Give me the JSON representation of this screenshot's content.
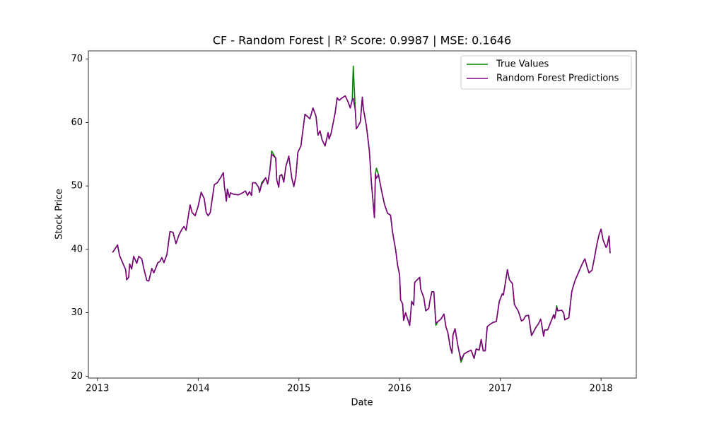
{
  "chart_data": {
    "type": "line",
    "title": "CF - Random Forest | R² Score: 0.9987 | MSE: 0.1646",
    "xlabel": "Date",
    "ylabel": "Stock Price",
    "x": [
      2013.15,
      2013.2,
      2013.22,
      2013.28,
      2013.29,
      2013.31,
      2013.32,
      2013.34,
      2013.36,
      2013.39,
      2013.41,
      2013.44,
      2013.46,
      2013.49,
      2013.51,
      2013.54,
      2013.56,
      2013.6,
      2013.62,
      2013.64,
      2013.66,
      2013.69,
      2013.72,
      2013.75,
      2013.78,
      2013.81,
      2013.84,
      2013.86,
      2013.88,
      2013.92,
      2013.94,
      2013.97,
      2014.0,
      2014.03,
      2014.06,
      2014.08,
      2014.1,
      2014.12,
      2014.16,
      2014.19,
      2014.23,
      2014.25,
      2014.26,
      2014.28,
      2014.29,
      2014.31,
      2014.32,
      2014.35,
      2014.4,
      2014.44,
      2014.47,
      2014.49,
      2014.51,
      2014.53,
      2014.54,
      2014.57,
      2014.6,
      2014.61,
      2014.63,
      2014.67,
      2014.69,
      2014.71,
      2014.73,
      2014.77,
      2014.78,
      2014.8,
      2014.81,
      2014.83,
      2014.85,
      2014.87,
      2014.9,
      2014.93,
      2014.95,
      2014.97,
      2014.99,
      2015.02,
      2015.06,
      2015.11,
      2015.14,
      2015.17,
      2015.19,
      2015.21,
      2015.23,
      2015.26,
      2015.29,
      2015.3,
      2015.32,
      2015.36,
      2015.38,
      2015.4,
      2015.43,
      2015.46,
      2015.49,
      2015.51,
      2015.53,
      2015.54,
      2015.56,
      2015.57,
      2015.59,
      2015.61,
      2015.63,
      2015.64,
      2015.67,
      2015.7,
      2015.72,
      2015.75,
      2015.76,
      2015.77,
      2015.79,
      2015.82,
      2015.85,
      2015.88,
      2015.91,
      2015.93,
      2015.96,
      2015.98,
      2016.0,
      2016.01,
      2016.03,
      2016.04,
      2016.06,
      2016.1,
      2016.12,
      2016.14,
      2016.15,
      2016.2,
      2016.21,
      2016.24,
      2016.26,
      2016.29,
      2016.3,
      2016.32,
      2016.34,
      2016.36,
      2016.38,
      2016.41,
      2016.44,
      2016.46,
      2016.48,
      2016.5,
      2016.52,
      2016.53,
      2016.55,
      2016.58,
      2016.61,
      2016.64,
      2016.67,
      2016.71,
      2016.74,
      2016.76,
      2016.79,
      2016.81,
      2016.83,
      2016.85,
      2016.87,
      2016.9,
      2016.93,
      2016.96,
      2016.99,
      2017.02,
      2017.03,
      2017.05,
      2017.07,
      2017.09,
      2017.12,
      2017.14,
      2017.18,
      2017.21,
      2017.23,
      2017.25,
      2017.28,
      2017.31,
      2017.35,
      2017.38,
      2017.4,
      2017.41,
      2017.43,
      2017.44,
      2017.47,
      2017.5,
      2017.53,
      2017.54,
      2017.56,
      2017.57,
      2017.61,
      2017.63,
      2017.64,
      2017.68,
      2017.71,
      2017.74,
      2017.78,
      2017.81,
      2017.84,
      2017.86,
      2017.88,
      2017.91,
      2017.93,
      2017.96,
      2017.98,
      2018.0,
      2018.02,
      2018.05,
      2018.06,
      2018.08,
      2018.09
    ],
    "series": [
      {
        "name": "True Values",
        "color": "#008000",
        "values": [
          39.5,
          40.7,
          39,
          36.8,
          35.2,
          35.6,
          37.7,
          36.9,
          38.9,
          37.8,
          38.9,
          38.5,
          37,
          35.1,
          35,
          37,
          36.3,
          37.9,
          38.1,
          38.7,
          37.9,
          39.2,
          42.8,
          42.7,
          40.9,
          42.3,
          43.2,
          43.6,
          43,
          47,
          45.8,
          45.3,
          46.8,
          49,
          48,
          45.8,
          45.3,
          45.8,
          50.2,
          50.5,
          51.5,
          52.1,
          50,
          47.6,
          49.5,
          48.2,
          48.9,
          48.7,
          48.6,
          48.9,
          49.2,
          48.5,
          49.1,
          48.5,
          50.5,
          50.5,
          49.8,
          49,
          50.5,
          51.3,
          50.3,
          52.2,
          55.5,
          54.4,
          51,
          49.8,
          51.6,
          51.8,
          50.6,
          53,
          54.7,
          51.2,
          49.9,
          51.5,
          55.3,
          56.3,
          61.3,
          60.6,
          62.3,
          61,
          58,
          58.7,
          57.3,
          56.3,
          58.4,
          57.4,
          58.3,
          61.5,
          63.9,
          63.5,
          63.9,
          64.2,
          63.2,
          62.3,
          63.6,
          68.9,
          62,
          59,
          59.5,
          60.1,
          64,
          62.2,
          59.5,
          55.5,
          50.5,
          45,
          51.9,
          52.8,
          51.8,
          49.3,
          47.1,
          45.7,
          45.4,
          42.7,
          40,
          37.5,
          36,
          32,
          31.4,
          28.8,
          30,
          28,
          31.8,
          31.2,
          34.8,
          35.6,
          33.7,
          32.4,
          30.3,
          30.7,
          31.8,
          33.3,
          33.3,
          28,
          28.6,
          29,
          29.8,
          27.8,
          26.8,
          24.8,
          23.6,
          26.5,
          27.5,
          24.7,
          22.2,
          23.5,
          23.8,
          24.1,
          22.8,
          24.3,
          24.1,
          25.8,
          24,
          24,
          27.8,
          28.2,
          28.5,
          28.6,
          31.8,
          33,
          32.8,
          34.7,
          36.8,
          35.2,
          34.6,
          31.3,
          30.2,
          28.7,
          28.9,
          29.5,
          29.6,
          26.4,
          27.6,
          28.3,
          29,
          28.2,
          26.3,
          27.3,
          27.3,
          28.5,
          29.7,
          29.1,
          31.1,
          30.3,
          30.4,
          29.9,
          28.9,
          29.2,
          33.4,
          35,
          36.5,
          37.6,
          38.5,
          37.3,
          36.3,
          36.7,
          38.3,
          40.9,
          42.3,
          43.2,
          41.5,
          40.3,
          40.6,
          42.1,
          39.4
        ]
      },
      {
        "name": "Random Forest Predictions",
        "color": "#800080",
        "values": [
          39.5,
          40.7,
          39,
          36.8,
          35.2,
          35.6,
          37.7,
          36.9,
          38.9,
          37.8,
          38.9,
          38.5,
          37,
          35.1,
          35,
          37,
          36.3,
          37.9,
          38.1,
          38.7,
          37.9,
          39.2,
          42.8,
          42.7,
          40.9,
          42.3,
          43.2,
          43.6,
          43,
          47,
          45.8,
          45.3,
          46.8,
          49,
          48,
          45.8,
          45.3,
          45.8,
          50.2,
          50.5,
          51.5,
          52.1,
          50,
          47.6,
          49.5,
          48.2,
          48.9,
          48.7,
          48.6,
          48.9,
          49.2,
          48.5,
          49.1,
          48.5,
          50.5,
          50.5,
          49.8,
          49,
          50.2,
          51.3,
          50.3,
          52.2,
          55,
          54.4,
          51,
          49.8,
          51.6,
          51.8,
          50.6,
          53,
          54.7,
          51.2,
          49.9,
          51.5,
          55.3,
          56.3,
          61.3,
          60.6,
          62.3,
          61,
          58,
          58.7,
          57.3,
          56.3,
          58.4,
          57.4,
          58.3,
          61.5,
          63.9,
          63.5,
          63.9,
          64.2,
          63.2,
          62.3,
          63.6,
          63.8,
          62,
          59,
          59.5,
          60.1,
          64,
          62.2,
          59.5,
          55.5,
          50.5,
          45,
          51.9,
          51.2,
          51.8,
          49.3,
          47.1,
          45.7,
          45.4,
          42.7,
          40,
          37.5,
          36,
          32,
          31.4,
          28.8,
          30,
          28,
          31.8,
          31.2,
          34.8,
          35.6,
          33.7,
          32.4,
          30.3,
          30.7,
          31.8,
          33.3,
          33.3,
          28.4,
          28.6,
          29,
          29.8,
          27.8,
          26.8,
          24.8,
          23.6,
          26.5,
          27.5,
          24.7,
          22.6,
          23.5,
          23.8,
          24.1,
          22.8,
          24.3,
          24.1,
          25.8,
          24,
          24,
          27.8,
          28.2,
          28.5,
          28.6,
          31.8,
          33,
          32.8,
          34.7,
          36.8,
          35.2,
          34.6,
          31.3,
          30.2,
          28.7,
          28.9,
          29.5,
          29.6,
          26.4,
          27.6,
          28.3,
          29,
          28.2,
          26.3,
          27.3,
          27.3,
          28.5,
          29.7,
          29.1,
          30.8,
          30.3,
          30.4,
          29.9,
          28.9,
          29.2,
          33.4,
          35,
          36.5,
          37.6,
          38.5,
          37.3,
          36.3,
          36.7,
          38.3,
          40.9,
          42.3,
          43.2,
          41.5,
          40.3,
          40.6,
          42.1,
          39.4
        ]
      }
    ],
    "xlim": [
      2012.91,
      2018.35
    ],
    "ylim": [
      19.7,
      71.3
    ],
    "xticks": [
      2013,
      2014,
      2015,
      2016,
      2017,
      2018
    ],
    "yticks": [
      20,
      30,
      40,
      50,
      60,
      70
    ],
    "legend": "upper right",
    "grid": false
  }
}
